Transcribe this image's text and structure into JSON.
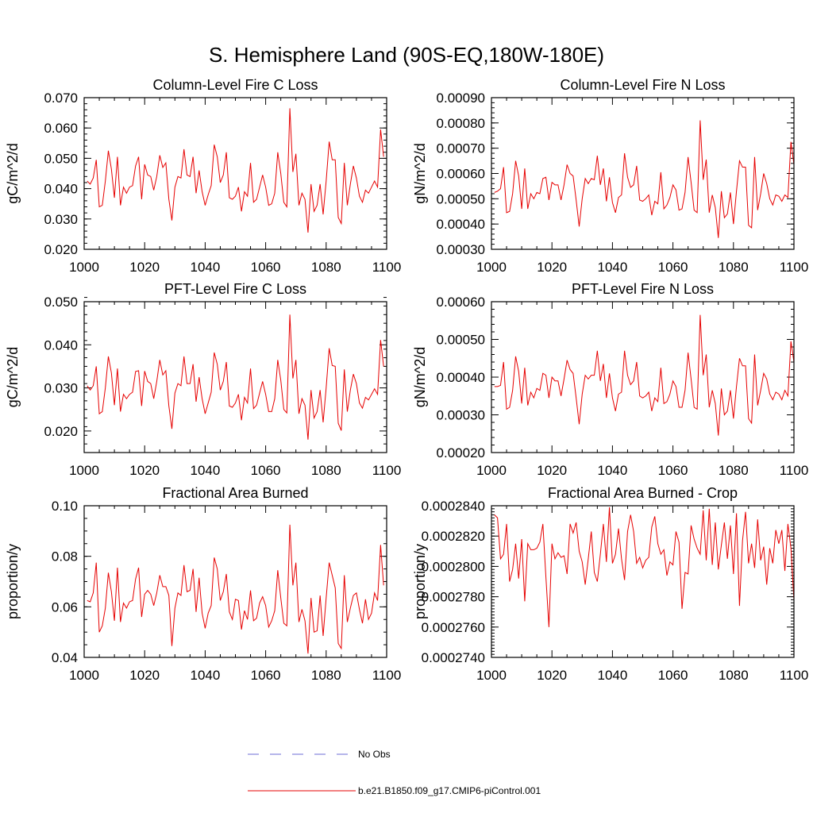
{
  "title": "S. Hemisphere Land (90S-EQ,180W-180E)",
  "legend": {
    "obs_label": "No Obs",
    "model_label": "b.e21.B1850.f09_g17.CMIP6-piControl.001",
    "obs_color": "#6b6bd6",
    "model_color": "#e60000"
  },
  "chart_data": [
    {
      "type": "line",
      "title": "Column-Level Fire C Loss",
      "ylabel": "gC/m^2/d",
      "xlim": [
        1000,
        1100
      ],
      "ylim": [
        0.02,
        0.07
      ],
      "yticks": [
        0.02,
        0.03,
        0.04,
        0.05,
        0.06,
        0.07
      ],
      "ytick_labels": [
        "0.020",
        "0.030",
        "0.040",
        "0.050",
        "0.060",
        "0.070"
      ],
      "xticks": [
        1000,
        1020,
        1040,
        1060,
        1080,
        1100
      ],
      "ytick_minor": 0.002,
      "start_year": 1001,
      "values": [
        0.0425,
        0.0415,
        0.0435,
        0.0495,
        0.034,
        0.0345,
        0.0425,
        0.0525,
        0.0465,
        0.037,
        0.0505,
        0.0345,
        0.0405,
        0.0385,
        0.0405,
        0.041,
        0.0475,
        0.0505,
        0.0365,
        0.048,
        0.0445,
        0.044,
        0.0395,
        0.044,
        0.051,
        0.047,
        0.0485,
        0.0365,
        0.0295,
        0.0405,
        0.044,
        0.0435,
        0.053,
        0.0445,
        0.044,
        0.0505,
        0.0385,
        0.046,
        0.039,
        0.0345,
        0.038,
        0.041,
        0.0545,
        0.0505,
        0.042,
        0.0445,
        0.052,
        0.037,
        0.0365,
        0.0375,
        0.0405,
        0.0325,
        0.039,
        0.0375,
        0.0485,
        0.0355,
        0.0365,
        0.0405,
        0.0445,
        0.0405,
        0.0345,
        0.035,
        0.0385,
        0.052,
        0.045,
        0.0355,
        0.034,
        0.0665,
        0.0455,
        0.0515,
        0.0345,
        0.0385,
        0.0365,
        0.0255,
        0.0415,
        0.0325,
        0.0345,
        0.0415,
        0.0315,
        0.0425,
        0.0555,
        0.0495,
        0.0495,
        0.0305,
        0.0285,
        0.0485,
        0.0345,
        0.0415,
        0.0475,
        0.0435,
        0.0375,
        0.0355,
        0.0395,
        0.0385,
        0.0405,
        0.0425,
        0.0405,
        0.0595,
        0.0505
      ]
    },
    {
      "type": "line",
      "title": "Column-Level Fire N Loss",
      "ylabel": "gN/m^2/d",
      "xlim": [
        1000,
        1100
      ],
      "ylim": [
        0.0003,
        0.0009
      ],
      "yticks": [
        0.0003,
        0.0004,
        0.0005,
        0.0006,
        0.0007,
        0.0008,
        0.0009
      ],
      "ytick_labels": [
        "0.00030",
        "0.00040",
        "0.00050",
        "0.00060",
        "0.00070",
        "0.00080",
        "0.00090"
      ],
      "xticks": [
        1000,
        1020,
        1040,
        1060,
        1080,
        1100
      ],
      "ytick_minor": 2e-05,
      "start_year": 1001,
      "values": [
        0.000525,
        0.00053,
        0.00054,
        0.000625,
        0.000445,
        0.00045,
        0.00052,
        0.00065,
        0.00059,
        0.00046,
        0.00062,
        0.00046,
        0.00052,
        0.0005,
        0.000525,
        0.00052,
        0.00058,
        0.000585,
        0.000495,
        0.000565,
        0.000555,
        0.000555,
        0.000495,
        0.000555,
        0.000635,
        0.0006,
        0.00059,
        0.000495,
        0.00039,
        0.0005,
        0.00058,
        0.00056,
        0.00058,
        0.000575,
        0.00067,
        0.000555,
        0.00062,
        0.00049,
        0.000585,
        0.000485,
        0.000445,
        0.000505,
        0.000515,
        0.00068,
        0.000585,
        0.000545,
        0.000555,
        0.00063,
        0.000495,
        0.00049,
        0.0005,
        0.000515,
        0.000435,
        0.00049,
        0.00048,
        0.000605,
        0.00046,
        0.000475,
        0.000505,
        0.000555,
        0.000535,
        0.000455,
        0.00046,
        0.000525,
        0.000665,
        0.000565,
        0.000455,
        0.000445,
        0.00081,
        0.000575,
        0.000655,
        0.000445,
        0.000515,
        0.000465,
        0.000345,
        0.00053,
        0.000425,
        0.00044,
        0.000525,
        0.0004,
        0.00053,
        0.00065,
        0.000625,
        0.000625,
        0.000395,
        0.000385,
        0.000665,
        0.000455,
        0.00052,
        0.0006,
        0.00056,
        0.0005,
        0.000475,
        0.000515,
        0.00051,
        0.00049,
        0.000515,
        0.000505,
        0.000725,
        0.000635
      ]
    },
    {
      "type": "line",
      "title": "PFT-Level Fire C Loss",
      "ylabel": "gC/m^2/d",
      "xlim": [
        1000,
        1100
      ],
      "ylim": [
        0.015,
        0.05
      ],
      "yticks": [
        0.02,
        0.03,
        0.04,
        0.05
      ],
      "ytick_labels": [
        "0.020",
        "0.030",
        "0.040",
        "0.050"
      ],
      "xticks": [
        1000,
        1020,
        1040,
        1060,
        1080,
        1100
      ],
      "ytick_minor": 0.002,
      "start_year": 1001,
      "values": [
        0.0305,
        0.0295,
        0.0305,
        0.035,
        0.024,
        0.0245,
        0.03,
        0.0373,
        0.0335,
        0.026,
        0.0345,
        0.0245,
        0.0285,
        0.0275,
        0.0285,
        0.029,
        0.0338,
        0.034,
        0.0258,
        0.0339,
        0.0315,
        0.031,
        0.0275,
        0.0315,
        0.0365,
        0.033,
        0.034,
        0.0258,
        0.0205,
        0.0288,
        0.031,
        0.0305,
        0.0373,
        0.031,
        0.031,
        0.0355,
        0.0268,
        0.0325,
        0.0275,
        0.024,
        0.0265,
        0.029,
        0.0382,
        0.0355,
        0.0295,
        0.0315,
        0.036,
        0.0258,
        0.0255,
        0.0265,
        0.0285,
        0.0225,
        0.0278,
        0.0265,
        0.0345,
        0.0252,
        0.026,
        0.0288,
        0.0315,
        0.0285,
        0.0245,
        0.0245,
        0.0275,
        0.0365,
        0.0318,
        0.025,
        0.0242,
        0.047,
        0.0322,
        0.0365,
        0.024,
        0.0275,
        0.026,
        0.018,
        0.0295,
        0.023,
        0.0245,
        0.0295,
        0.022,
        0.03,
        0.0392,
        0.0352,
        0.035,
        0.0218,
        0.0201,
        0.0343,
        0.0245,
        0.0295,
        0.0332,
        0.031,
        0.0265,
        0.0253,
        0.0278,
        0.0272,
        0.0285,
        0.0298,
        0.0285,
        0.0411,
        0.035
      ]
    },
    {
      "type": "line",
      "title": "PFT-Level Fire N Loss",
      "ylabel": "gN/m^2/d",
      "xlim": [
        1000,
        1100
      ],
      "ylim": [
        0.0002,
        0.0006
      ],
      "yticks": [
        0.0002,
        0.0003,
        0.0004,
        0.0005,
        0.0006
      ],
      "ytick_labels": [
        "0.00020",
        "0.00030",
        "0.00040",
        "0.00050",
        "0.00060"
      ],
      "xticks": [
        1000,
        1020,
        1040,
        1060,
        1080,
        1100
      ],
      "ytick_minor": 2e-05,
      "start_year": 1001,
      "values": [
        0.000375,
        0.000375,
        0.000378,
        0.00044,
        0.000315,
        0.00032,
        0.000365,
        0.000455,
        0.000415,
        0.00033,
        0.000425,
        0.000325,
        0.00036,
        0.000345,
        0.00037,
        0.000365,
        0.00041,
        0.000405,
        0.000345,
        0.0004,
        0.00039,
        0.00039,
        0.00035,
        0.000395,
        0.000445,
        0.00042,
        0.00041,
        0.000345,
        0.000275,
        0.000355,
        0.000405,
        0.000395,
        0.000405,
        0.000405,
        0.00047,
        0.00039,
        0.000435,
        0.000345,
        0.00041,
        0.000345,
        0.00031,
        0.000355,
        0.00036,
        0.00047,
        0.000405,
        0.00038,
        0.00039,
        0.00044,
        0.00035,
        0.000345,
        0.00035,
        0.00036,
        0.00031,
        0.000345,
        0.000335,
        0.000425,
        0.00033,
        0.000335,
        0.000355,
        0.00039,
        0.000375,
        0.00032,
        0.00032,
        0.000365,
        0.000465,
        0.000395,
        0.00032,
        0.000315,
        0.000565,
        0.000405,
        0.00046,
        0.00032,
        0.000365,
        0.00033,
        0.000245,
        0.00037,
        0.0003,
        0.00031,
        0.000365,
        0.00029,
        0.000375,
        0.00045,
        0.00043,
        0.00043,
        0.00029,
        0.000278,
        0.00046,
        0.000325,
        0.000365,
        0.00041,
        0.000395,
        0.000355,
        0.00034,
        0.00036,
        0.000355,
        0.00034,
        0.000365,
        0.00035,
        0.000495,
        0.00044
      ]
    },
    {
      "type": "line",
      "title": "Fractional Area Burned",
      "ylabel": "proportion/y",
      "xlim": [
        1000,
        1100
      ],
      "ylim": [
        0.04,
        0.1
      ],
      "yticks": [
        0.04,
        0.06,
        0.08,
        0.1
      ],
      "ytick_labels": [
        "0.04",
        "0.06",
        "0.08",
        "0.10"
      ],
      "xticks": [
        1000,
        1020,
        1040,
        1060,
        1080,
        1100
      ],
      "ytick_minor": 0.005,
      "start_year": 1001,
      "values": [
        0.0625,
        0.062,
        0.0655,
        0.0775,
        0.05,
        0.0525,
        0.0595,
        0.0735,
        0.066,
        0.0545,
        0.0755,
        0.054,
        0.0615,
        0.0595,
        0.062,
        0.0625,
        0.071,
        0.0755,
        0.056,
        0.065,
        0.0665,
        0.065,
        0.0605,
        0.0655,
        0.0725,
        0.068,
        0.068,
        0.0645,
        0.0445,
        0.0595,
        0.0655,
        0.0645,
        0.0765,
        0.066,
        0.0665,
        0.075,
        0.058,
        0.0715,
        0.0575,
        0.0515,
        0.0575,
        0.0605,
        0.0795,
        0.075,
        0.0625,
        0.066,
        0.073,
        0.058,
        0.055,
        0.063,
        0.0625,
        0.051,
        0.0585,
        0.055,
        0.0665,
        0.0545,
        0.0555,
        0.0615,
        0.064,
        0.0605,
        0.052,
        0.0545,
        0.0585,
        0.0745,
        0.0635,
        0.0535,
        0.0525,
        0.0925,
        0.0685,
        0.0775,
        0.054,
        0.059,
        0.0545,
        0.0415,
        0.0635,
        0.05,
        0.0505,
        0.0645,
        0.0485,
        0.0635,
        0.0775,
        0.0725,
        0.0675,
        0.0455,
        0.0435,
        0.0725,
        0.054,
        0.0595,
        0.0645,
        0.0655,
        0.059,
        0.0535,
        0.063,
        0.055,
        0.0575,
        0.0655,
        0.0625,
        0.0845,
        0.0685
      ]
    },
    {
      "type": "line",
      "title": "Fractional Area Burned - Crop",
      "ylabel": "proportion/y",
      "xlim": [
        1000,
        1100
      ],
      "ylim": [
        0.000274,
        0.000284
      ],
      "yticks": [
        0.000274,
        0.000276,
        0.000278,
        0.00028,
        0.000282,
        0.000284
      ],
      "ytick_labels": [
        "0.0002740",
        "0.0002760",
        "0.0002780",
        "0.0002800",
        "0.0002820",
        "0.0002840"
      ],
      "xticks": [
        1000,
        1020,
        1040,
        1060,
        1080,
        1100
      ],
      "ytick_minor": 2e-07,
      "start_year": 1001,
      "values": [
        0.0002834,
        0.0002832,
        0.0002805,
        0.0002808,
        0.0002828,
        0.000279,
        0.0002798,
        0.0002815,
        0.0002792,
        0.0002818,
        0.0002777,
        0.0002815,
        0.0002811,
        0.0002811,
        0.0002812,
        0.0002816,
        0.0002828,
        0.0002793,
        0.000276,
        0.0002815,
        0.0002805,
        0.0002809,
        0.0002806,
        0.0002807,
        0.0002795,
        0.0002828,
        0.0002822,
        0.0002829,
        0.000281,
        0.0002803,
        0.0002788,
        0.0002805,
        0.0002823,
        0.0002796,
        0.000279,
        0.0002808,
        0.0002828,
        0.0002803,
        0.0002839,
        0.0002802,
        0.0002808,
        0.0002825,
        0.0002805,
        0.0002791,
        0.0002823,
        0.0002834,
        0.0002823,
        0.0002802,
        0.0002806,
        0.0002799,
        0.0002804,
        0.0002806,
        0.0002826,
        0.0002833,
        0.0002815,
        0.0002808,
        0.0002811,
        0.0002794,
        0.0002803,
        0.0002801,
        0.0002823,
        0.0002816,
        0.0002772,
        0.0002796,
        0.0002795,
        0.0002827,
        0.0002818,
        0.0002812,
        0.0002808,
        0.0002837,
        0.0002804,
        0.0002838,
        0.0002801,
        0.0002829,
        0.0002798,
        0.0002814,
        0.0002829,
        0.0002805,
        0.0002827,
        0.0002795,
        0.0002835,
        0.0002774,
        0.0002817,
        0.0002836,
        0.0002802,
        0.0002815,
        0.0002799,
        0.0002831,
        0.0002804,
        0.0002813,
        0.0002788,
        0.0002812,
        0.0002802,
        0.0002824,
        0.0002815,
        0.0002824,
        0.0002797,
        0.0002828,
        0.0002812,
        0.0002778,
        0.0002821
      ]
    }
  ]
}
